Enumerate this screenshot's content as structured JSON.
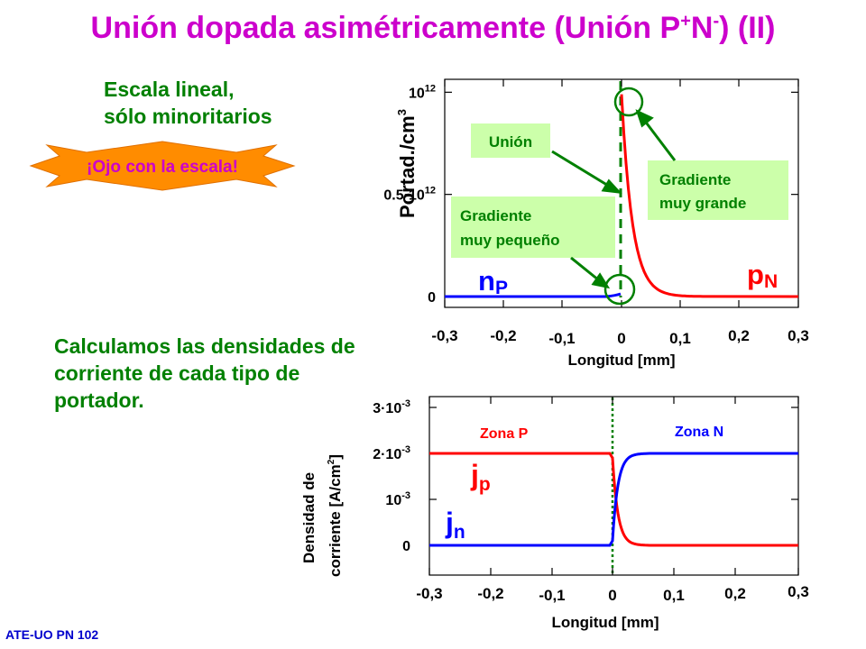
{
  "slide": {
    "title_main": "Unión dopada asimétricamente (Unión P",
    "title_sup1": "+",
    "title_mid": "N",
    "title_sup2": "-",
    "title_end": ") (II)",
    "scale_note_line1": "Escala lineal,",
    "scale_note_line2": "sólo minoritarios",
    "warning_badge": "¡Ojo con la escala!",
    "calc_text": "Calculamos las densidades de corriente de cada tipo de portador.",
    "footer": "ATE-UO PN 102"
  },
  "colors": {
    "title": "#cc00cc",
    "text_green": "#008000",
    "callout_bg": "#ccffaa",
    "badge": "#ff8c00",
    "series_blue": "#0000ff",
    "series_red": "#ff0000",
    "junction_line": "#008000",
    "footer": "#0000cc"
  },
  "chart_data": [
    {
      "type": "line",
      "xlabel": "Longitud [mm]",
      "ylabel": "Portad./cm",
      "ylabel_sup": "3",
      "xlim": [
        -0.3,
        0.3
      ],
      "ylim": [
        0,
        1050000000000.0
      ],
      "x_ticks": [
        "-0,3",
        "-0,2",
        "-0,1",
        "0",
        "0,1",
        "0,2",
        "0,3"
      ],
      "y_ticks": [
        {
          "base": "0",
          "exp": ""
        },
        {
          "base": "0.5·10",
          "exp": "12"
        },
        {
          "base": "10",
          "exp": "12"
        }
      ],
      "series": [
        {
          "name": "n",
          "name_sub": "P",
          "color": "#0000ff",
          "side": "P"
        },
        {
          "name": "p",
          "name_sub": "N",
          "color": "#ff0000",
          "side": "N"
        }
      ],
      "annotations": [
        {
          "text": "Unión"
        },
        {
          "line1": "Gradiente",
          "line2": "muy grande"
        },
        {
          "line1": "Gradiente",
          "line2": "muy pequeño"
        }
      ]
    },
    {
      "type": "line",
      "xlabel": "Longitud [mm]",
      "ylabel_line1": "Densidad de",
      "ylabel_line2": "corriente [A/cm",
      "ylabel_sup": "2",
      "ylabel_end": "]",
      "xlim": [
        -0.3,
        0.3
      ],
      "ylim": [
        0,
        0.003
      ],
      "x_ticks": [
        "-0,3",
        "-0,2",
        "-0,1",
        "0",
        "0,1",
        "0,2",
        "0,3"
      ],
      "y_ticks": [
        {
          "base": "0",
          "exp": ""
        },
        {
          "base": "10",
          "exp": "-3"
        },
        {
          "base": "2·10",
          "exp": "-3"
        },
        {
          "base": "3·10",
          "exp": "-3"
        }
      ],
      "series": [
        {
          "name": "j",
          "name_sub": "p",
          "color": "#ff0000",
          "value_P": 0.002,
          "value_N": 0.0
        },
        {
          "name": "j",
          "name_sub": "n",
          "color": "#0000ff",
          "value_P": 0.0,
          "value_N": 0.002
        }
      ],
      "zones": [
        "Zona P",
        "Zona N"
      ]
    }
  ]
}
